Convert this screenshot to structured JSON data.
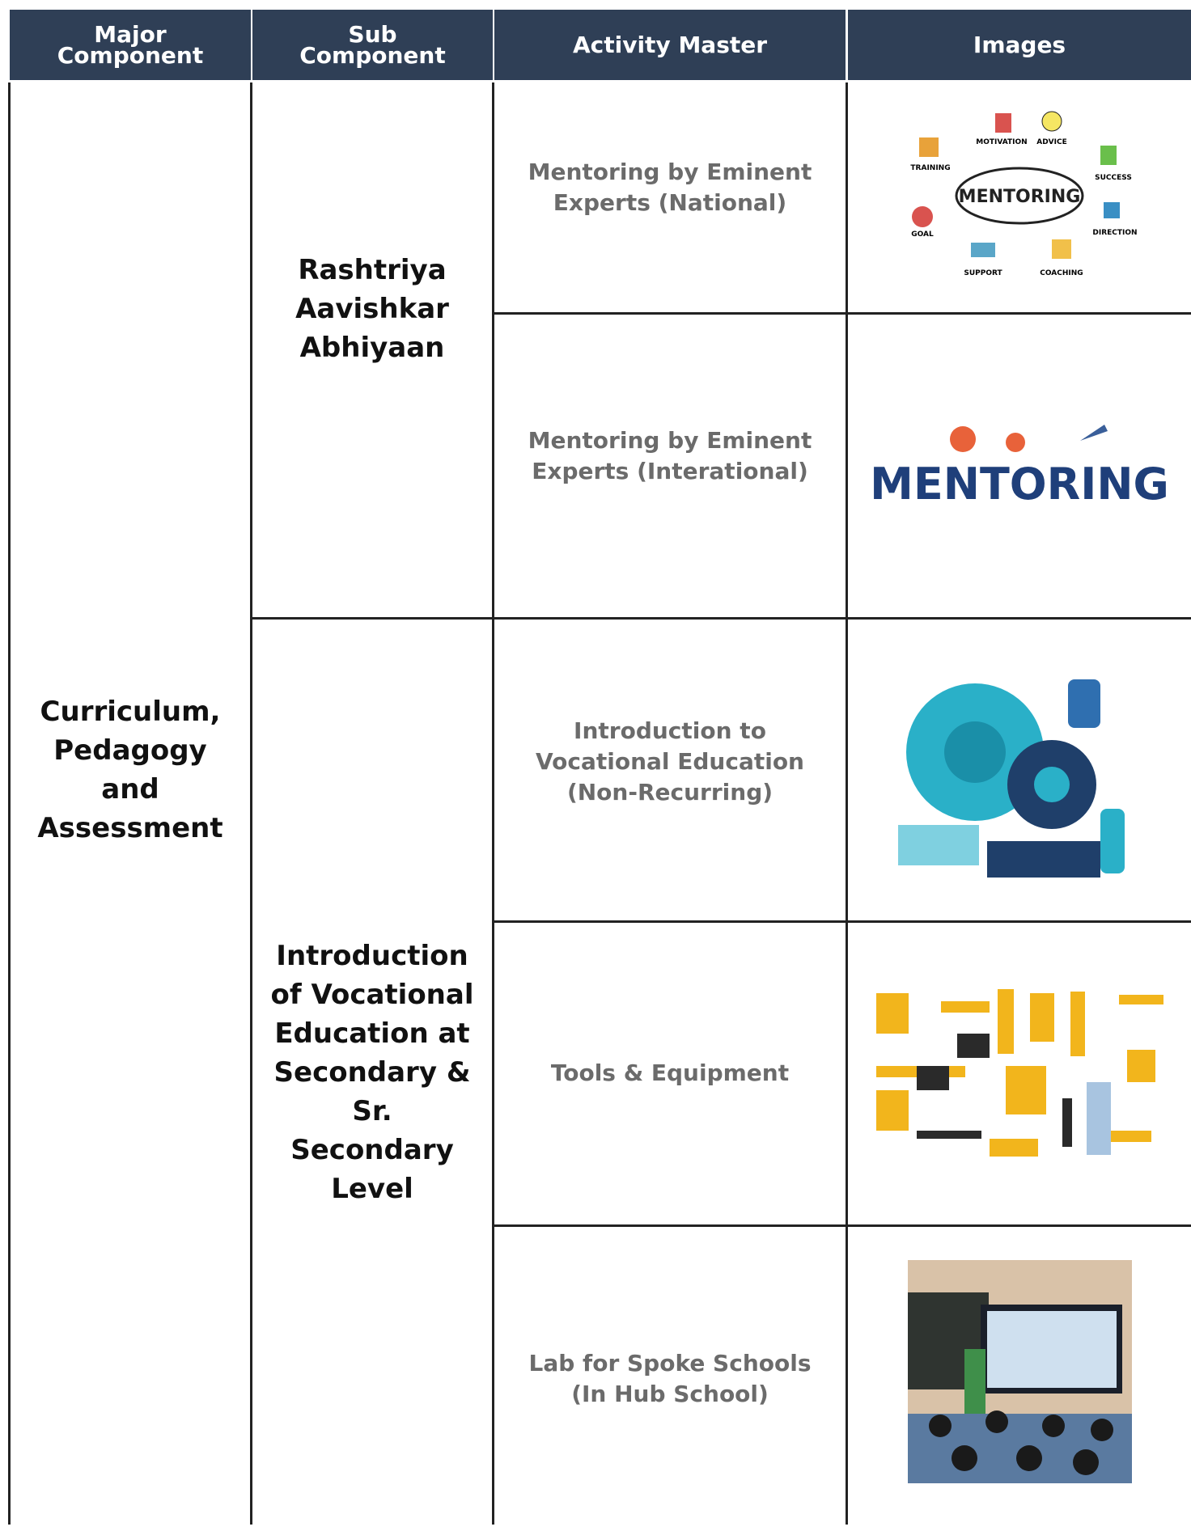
{
  "header": {
    "columns": [
      "Major\nComponent",
      "Sub\nComponent",
      "Activity Master",
      "Images"
    ]
  },
  "major_component": "Curriculum, Pedagogy and Assessment",
  "sub_components": [
    {
      "label": "Rashtriya Aavishkar Abhiyaan",
      "activities": [
        {
          "label": "Mentoring by Eminent Experts (National)",
          "image_labels": [
            "MENTORING",
            "MOTIVATION",
            "ADVICE",
            "TRAINING",
            "SUCCESS",
            "GOAL",
            "DIRECTION",
            "SUPPORT",
            "COACHING"
          ]
        },
        {
          "label": "Mentoring by Eminent Experts (Interational)",
          "image_labels": [
            "MENTORING"
          ]
        }
      ]
    },
    {
      "label": "Introduction of Vocational Education at Secondary & Sr. Secondary Level",
      "activities": [
        {
          "label": "Introduction to Vocational Education (Non-Recurring)"
        },
        {
          "label": "Tools & Equipment"
        },
        {
          "label": "Lab for Spoke Schools (In Hub School)"
        }
      ]
    }
  ]
}
